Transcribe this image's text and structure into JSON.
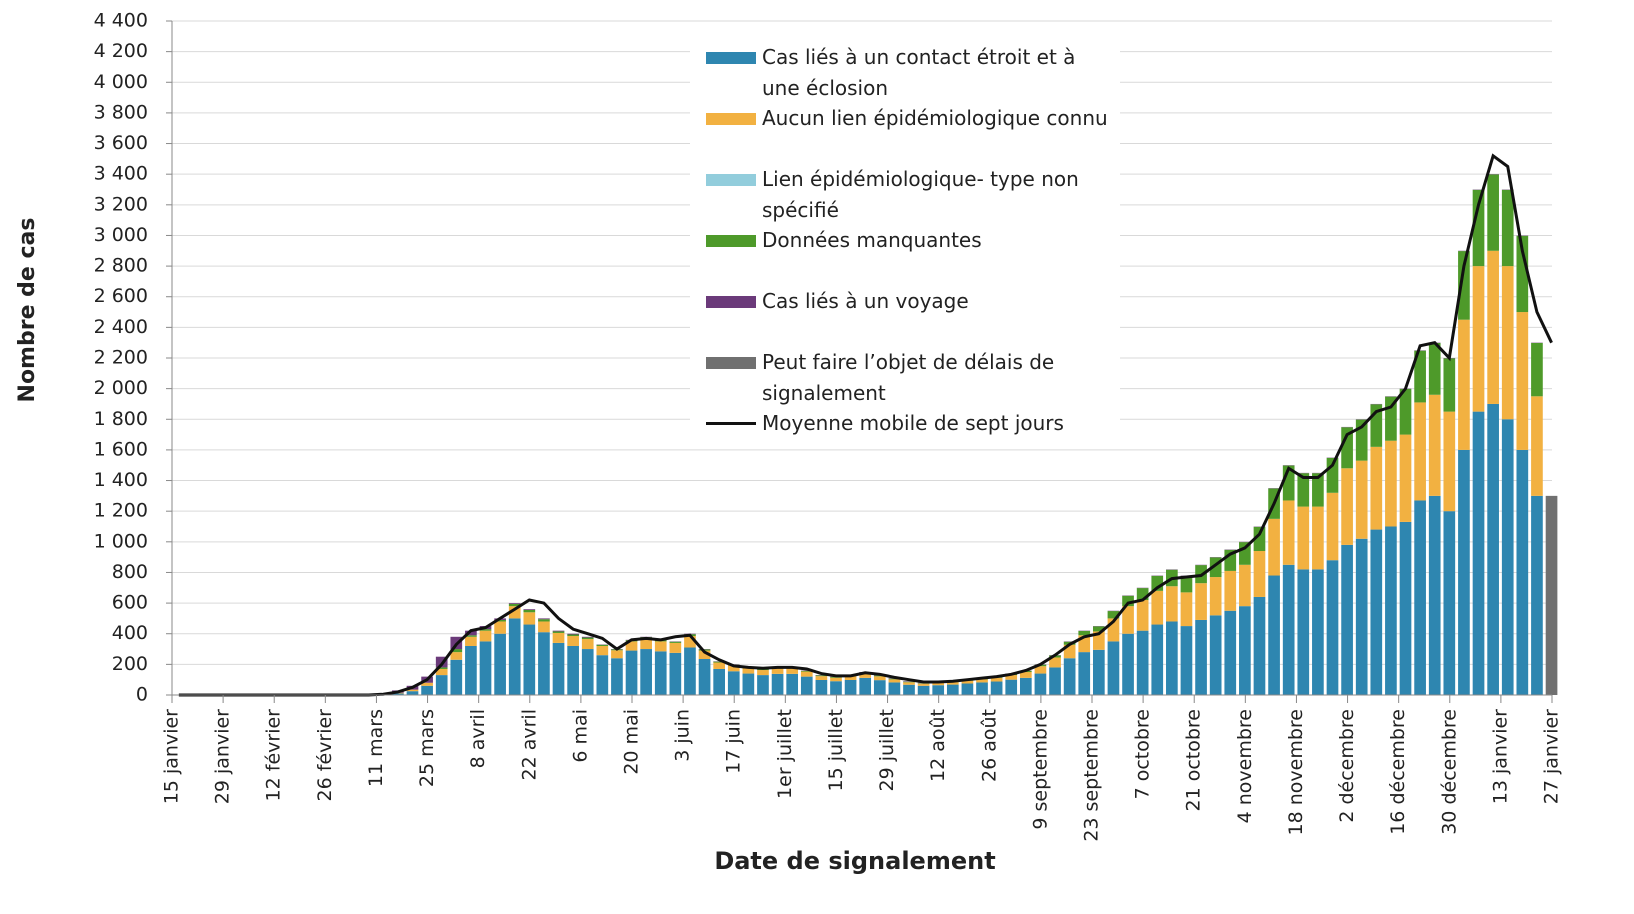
{
  "chart_data": {
    "type": "stacked-bar",
    "y_label": "Nombre de cas",
    "x_label": "Date de signalement",
    "x": [
      0,
      4,
      8,
      12,
      16,
      20,
      24,
      28,
      32,
      36,
      40,
      44,
      48,
      52,
      56,
      60,
      64,
      68,
      72,
      76,
      80,
      84,
      88,
      92,
      96,
      100,
      104,
      108,
      112,
      116,
      120,
      124,
      128,
      132,
      136,
      140,
      144,
      148,
      152,
      156,
      160,
      164,
      168,
      172,
      176,
      180,
      184,
      188,
      192,
      196,
      200,
      204,
      208,
      212,
      216,
      220,
      224,
      228,
      232,
      236,
      240,
      244,
      248,
      252,
      256,
      260,
      264,
      268,
      272,
      276,
      280,
      284,
      288,
      292,
      296,
      300,
      304,
      308,
      312,
      316,
      320,
      324,
      328,
      332,
      336,
      340,
      344,
      348,
      352,
      356,
      360,
      364,
      368,
      372,
      376
    ],
    "xlim": [
      0,
      380
    ],
    "xticks": [
      {
        "value": 0,
        "label": "15 janvier"
      },
      {
        "value": 14,
        "label": "29 janvier"
      },
      {
        "value": 28,
        "label": "12 février"
      },
      {
        "value": 42,
        "label": "26 février"
      },
      {
        "value": 56,
        "label": "11 mars"
      },
      {
        "value": 70,
        "label": "25 mars"
      },
      {
        "value": 84,
        "label": "8 avril"
      },
      {
        "value": 98,
        "label": "22 avril"
      },
      {
        "value": 112,
        "label": "6 mai"
      },
      {
        "value": 126,
        "label": "20 mai"
      },
      {
        "value": 140,
        "label": "3 juin"
      },
      {
        "value": 154,
        "label": "17 juin"
      },
      {
        "value": 168,
        "label": "1er juillet"
      },
      {
        "value": 182,
        "label": "15 juillet"
      },
      {
        "value": 196,
        "label": "29 juillet"
      },
      {
        "value": 210,
        "label": "12 août"
      },
      {
        "value": 224,
        "label": "26 août"
      },
      {
        "value": 238,
        "label": "9 septembre"
      },
      {
        "value": 252,
        "label": "23 septembre"
      },
      {
        "value": 266,
        "label": "7 octobre"
      },
      {
        "value": 280,
        "label": "21 octobre"
      },
      {
        "value": 294,
        "label": "4 novembre"
      },
      {
        "value": 308,
        "label": "18 novembre"
      },
      {
        "value": 322,
        "label": "2 décembre"
      },
      {
        "value": 336,
        "label": "16 décembre"
      },
      {
        "value": 350,
        "label": "30 décembre"
      },
      {
        "value": 364,
        "label": "13 janvier"
      },
      {
        "value": 378,
        "label": "27 janvier"
      }
    ],
    "ylim": [
      0,
      4400
    ],
    "yticks": [
      0,
      200,
      400,
      600,
      800,
      {
        "value": 1000,
        "label": "1 000"
      },
      {
        "value": 1200,
        "label": "1 200"
      },
      {
        "value": 1400,
        "label": "1 400"
      },
      {
        "value": 1600,
        "label": "1 600"
      },
      {
        "value": 1800,
        "label": "1 800"
      },
      {
        "value": 2000,
        "label": "2 000"
      },
      {
        "value": 2200,
        "label": "2 200"
      },
      {
        "value": 2400,
        "label": "2 400"
      },
      {
        "value": 2600,
        "label": "2 600"
      },
      {
        "value": 2800,
        "label": "2 800"
      },
      {
        "value": 3000,
        "label": "3 000"
      },
      {
        "value": 3200,
        "label": "3 200"
      },
      {
        "value": 3400,
        "label": "3 400"
      },
      {
        "value": 3600,
        "label": "3 600"
      },
      {
        "value": 3800,
        "label": "3 800"
      },
      {
        "value": 4000,
        "label": "4 000"
      },
      {
        "value": 4200,
        "label": "4 200"
      },
      {
        "value": 4400,
        "label": "4 400"
      }
    ],
    "grid": true,
    "series": [
      {
        "name": "Cas liés à un contact étroit et à une éclosion",
        "color": "#2e86b0",
        "values": [
          0,
          0,
          0,
          0,
          0,
          0,
          0,
          0,
          0,
          0,
          0,
          0,
          0,
          0,
          3,
          10,
          25,
          60,
          130,
          230,
          320,
          350,
          400,
          500,
          460,
          410,
          340,
          320,
          300,
          260,
          240,
          290,
          300,
          285,
          275,
          310,
          235,
          170,
          155,
          140,
          130,
          138,
          138,
          120,
          98,
          90,
          98,
          112,
          97,
          82,
          67,
          60,
          64,
          68,
          75,
          82,
          88,
          100,
          112,
          140,
          180,
          240,
          280,
          295,
          350,
          400,
          420,
          460,
          480,
          450,
          490,
          520,
          550,
          580,
          640,
          780,
          850,
          820,
          820,
          880,
          980,
          1020,
          1080,
          1100,
          1130,
          1270,
          1300,
          1200,
          1600,
          1850,
          1900,
          1800,
          1600,
          1300,
          0
        ]
      },
      {
        "name": "Aucun lien épidémiologique connu",
        "color": "#f2b141",
        "values": [
          0,
          0,
          0,
          0,
          0,
          0,
          0,
          0,
          0,
          0,
          0,
          0,
          0,
          0,
          2,
          5,
          10,
          20,
          40,
          50,
          60,
          70,
          80,
          80,
          80,
          70,
          65,
          65,
          65,
          60,
          52,
          60,
          68,
          65,
          65,
          75,
          55,
          42,
          38,
          33,
          33,
          35,
          35,
          33,
          25,
          23,
          25,
          30,
          25,
          20,
          16,
          14,
          15,
          16,
          18,
          20,
          24,
          30,
          38,
          48,
          65,
          88,
          110,
          120,
          150,
          180,
          200,
          220,
          230,
          220,
          240,
          250,
          260,
          270,
          300,
          370,
          420,
          410,
          410,
          440,
          500,
          510,
          540,
          560,
          570,
          640,
          660,
          650,
          850,
          950,
          1000,
          1000,
          900,
          650,
          0
        ]
      },
      {
        "name": "Lien épidémiologique- type non spécifié",
        "color": "#92cddc",
        "values": [
          0,
          0,
          0,
          0,
          0,
          0,
          0,
          0,
          0,
          0,
          0,
          0,
          0,
          0,
          0,
          0,
          0,
          0,
          0,
          0,
          0,
          0,
          0,
          0,
          0,
          0,
          0,
          0,
          0,
          0,
          0,
          0,
          0,
          0,
          0,
          0,
          0,
          0,
          0,
          0,
          0,
          0,
          0,
          0,
          0,
          0,
          0,
          0,
          0,
          0,
          0,
          0,
          0,
          0,
          0,
          0,
          0,
          0,
          0,
          0,
          0,
          0,
          0,
          0,
          0,
          0,
          0,
          0,
          0,
          0,
          0,
          0,
          0,
          0,
          0,
          0,
          0,
          0,
          0,
          0,
          0,
          0,
          0,
          0,
          0,
          0,
          0,
          0,
          0,
          0,
          0,
          0,
          0,
          0,
          0
        ]
      },
      {
        "name": "Données manquantes",
        "color": "#4e9a2a",
        "values": [
          0,
          0,
          0,
          0,
          0,
          0,
          0,
          0,
          0,
          0,
          0,
          0,
          0,
          0,
          0,
          0,
          0,
          0,
          10,
          20,
          10,
          10,
          10,
          15,
          15,
          15,
          10,
          10,
          10,
          8,
          6,
          8,
          10,
          8,
          8,
          12,
          8,
          6,
          5,
          5,
          5,
          5,
          5,
          5,
          5,
          5,
          5,
          5,
          5,
          5,
          4,
          3,
          3,
          3,
          4,
          5,
          5,
          7,
          8,
          10,
          13,
          20,
          28,
          33,
          48,
          68,
          78,
          98,
          108,
          108,
          118,
          128,
          138,
          148,
          158,
          198,
          228,
          218,
          218,
          228,
          268,
          268,
          278,
          288,
          298,
          338,
          338,
          348,
          448,
          498,
          498,
          498,
          498,
          348,
          0
        ]
      },
      {
        "name": "Cas liés à un voyage",
        "color": "#6b3a7a",
        "values": [
          0,
          0,
          0,
          0,
          0,
          0,
          0,
          0,
          0,
          0,
          0,
          0,
          0,
          0,
          5,
          15,
          25,
          40,
          70,
          80,
          30,
          20,
          10,
          5,
          5,
          5,
          5,
          5,
          5,
          2,
          2,
          2,
          2,
          2,
          2,
          3,
          2,
          2,
          2,
          2,
          2,
          2,
          2,
          2,
          2,
          2,
          2,
          3,
          3,
          3,
          3,
          3,
          3,
          3,
          3,
          3,
          3,
          3,
          2,
          2,
          2,
          2,
          2,
          2,
          2,
          2,
          2,
          2,
          2,
          2,
          2,
          2,
          2,
          2,
          2,
          2,
          2,
          2,
          2,
          2,
          2,
          2,
          2,
          2,
          2,
          2,
          2,
          2,
          2,
          2,
          2,
          2,
          2,
          2,
          0
        ]
      },
      {
        "name": "Peut faire l’objet de délais de signalement",
        "color": "#707070",
        "values": [
          0,
          0,
          0,
          0,
          0,
          0,
          0,
          0,
          0,
          0,
          0,
          0,
          0,
          0,
          0,
          0,
          0,
          0,
          0,
          0,
          0,
          0,
          0,
          0,
          0,
          0,
          0,
          0,
          0,
          0,
          0,
          0,
          0,
          0,
          0,
          0,
          0,
          0,
          0,
          0,
          0,
          0,
          0,
          0,
          0,
          0,
          0,
          0,
          0,
          0,
          0,
          0,
          0,
          0,
          0,
          0,
          0,
          0,
          0,
          0,
          0,
          0,
          0,
          0,
          0,
          0,
          0,
          0,
          0,
          0,
          0,
          0,
          0,
          0,
          0,
          0,
          0,
          0,
          0,
          0,
          0,
          0,
          0,
          0,
          0,
          0,
          0,
          0,
          0,
          0,
          0,
          0,
          0,
          0,
          1300
        ]
      }
    ],
    "line": {
      "name": "Moyenne mobile de sept jours",
      "color": "#111111",
      "values": [
        0,
        0,
        0,
        0,
        0,
        0,
        0,
        0,
        0,
        0,
        0,
        0,
        0,
        0,
        5,
        20,
        50,
        100,
        200,
        330,
        420,
        440,
        500,
        560,
        620,
        600,
        500,
        430,
        400,
        370,
        300,
        360,
        370,
        360,
        380,
        390,
        280,
        230,
        190,
        180,
        175,
        180,
        180,
        170,
        140,
        125,
        125,
        145,
        135,
        115,
        100,
        85,
        85,
        90,
        100,
        110,
        120,
        135,
        160,
        200,
        260,
        330,
        380,
        400,
        480,
        600,
        620,
        700,
        760,
        770,
        780,
        850,
        920,
        960,
        1050,
        1250,
        1480,
        1420,
        1420,
        1500,
        1700,
        1750,
        1850,
        1880,
        2000,
        2280,
        2300,
        2200,
        2800,
        3200,
        3520,
        3450,
        2900,
        2500,
        2300
      ]
    }
  }
}
